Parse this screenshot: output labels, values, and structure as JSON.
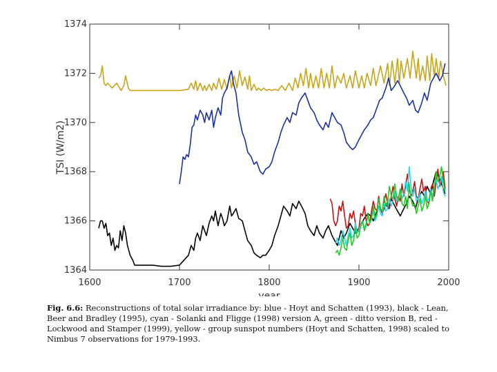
{
  "chart_data": {
    "type": "line",
    "title": "",
    "xlabel": "year",
    "ylabel": "TSI (W/m2)",
    "xlim": [
      1600,
      2000
    ],
    "ylim": [
      1364,
      1374
    ],
    "x_ticks": [
      1600,
      1700,
      1800,
      1900,
      2000
    ],
    "x_tick_labels": [
      "1600",
      "1700",
      "1800",
      "1900",
      "2000"
    ],
    "y_ticks": [
      1364,
      1366,
      1368,
      1370,
      1372,
      1374
    ],
    "y_tick_labels": [
      "1364",
      "1366",
      "1368",
      "1370",
      "1372",
      "1374"
    ],
    "series": [
      {
        "name": "yellow - group sunspot numbers (Hoyt and Schatten, 1998) scaled to Nimbus 7 observations for 1979-1993",
        "color": "#c8a418",
        "x": [
          1610,
          1612,
          1614,
          1616,
          1618,
          1620,
          1625,
          1630,
          1635,
          1638,
          1640,
          1643,
          1645,
          1650,
          1660,
          1670,
          1680,
          1690,
          1700,
          1710,
          1713,
          1716,
          1718,
          1720,
          1723,
          1726,
          1728,
          1730,
          1733,
          1736,
          1738,
          1741,
          1744,
          1747,
          1750,
          1753,
          1756,
          1758,
          1761,
          1764,
          1767,
          1770,
          1773,
          1776,
          1778,
          1780,
          1783,
          1786,
          1788,
          1791,
          1794,
          1797,
          1800,
          1803,
          1806,
          1810,
          1814,
          1818,
          1822,
          1826,
          1829,
          1832,
          1835,
          1838,
          1841,
          1844,
          1846,
          1849,
          1852,
          1855,
          1858,
          1861,
          1864,
          1867,
          1870,
          1873,
          1876,
          1880,
          1883,
          1886,
          1890,
          1893,
          1896,
          1900,
          1903,
          1906,
          1909,
          1913,
          1916,
          1919,
          1924,
          1928,
          1932,
          1934,
          1937,
          1940,
          1943,
          1945,
          1947,
          1950,
          1954,
          1957,
          1960,
          1964,
          1966,
          1968,
          1971,
          1974,
          1976,
          1979,
          1981,
          1984,
          1986,
          1989,
          1991,
          1994,
          1997
        ],
        "y": [
          1371.8,
          1371.9,
          1372.3,
          1371.6,
          1371.5,
          1371.6,
          1371.4,
          1371.6,
          1371.3,
          1371.5,
          1371.9,
          1371.4,
          1371.3,
          1371.3,
          1371.3,
          1371.3,
          1371.3,
          1371.3,
          1371.3,
          1371.35,
          1371.6,
          1371.35,
          1371.7,
          1371.3,
          1371.6,
          1371.3,
          1371.5,
          1371.3,
          1371.55,
          1371.3,
          1371.6,
          1371.35,
          1371.8,
          1371.35,
          1371.75,
          1371.35,
          1371.9,
          1371.4,
          1371.9,
          1371.4,
          1372.1,
          1371.5,
          1371.85,
          1371.35,
          1371.9,
          1371.3,
          1371.55,
          1371.3,
          1371.4,
          1371.3,
          1371.4,
          1371.3,
          1371.35,
          1371.3,
          1371.35,
          1371.3,
          1371.5,
          1371.3,
          1371.6,
          1371.3,
          1371.8,
          1371.4,
          1372.0,
          1371.5,
          1372.2,
          1371.4,
          1372.0,
          1371.4,
          1371.9,
          1371.4,
          1372.2,
          1371.4,
          1372.0,
          1371.4,
          1372.3,
          1371.4,
          1371.9,
          1371.6,
          1372.0,
          1371.4,
          1371.9,
          1371.4,
          1372.1,
          1371.4,
          1371.9,
          1371.4,
          1372.0,
          1371.5,
          1372.2,
          1371.5,
          1372.3,
          1371.6,
          1372.4,
          1371.5,
          1372.5,
          1371.6,
          1372.6,
          1371.6,
          1372.5,
          1371.8,
          1372.6,
          1371.8,
          1372.9,
          1371.8,
          1372.6,
          1371.7,
          1372.3,
          1371.7,
          1372.7,
          1371.7,
          1372.8,
          1371.9,
          1372.6,
          1371.8,
          1372.5,
          1371.9,
          1371.5
        ]
      },
      {
        "name": "blue - Hoyt and Schatten (1993)",
        "color": "#1c2ea8",
        "x": [
          1700,
          1702,
          1704,
          1706,
          1708,
          1710,
          1712,
          1714,
          1716,
          1718,
          1720,
          1723,
          1726,
          1728,
          1730,
          1733,
          1736,
          1738,
          1740,
          1743,
          1746,
          1748,
          1750,
          1753,
          1756,
          1758,
          1760,
          1763,
          1766,
          1770,
          1773,
          1776,
          1780,
          1783,
          1786,
          1790,
          1793,
          1796,
          1800,
          1803,
          1806,
          1810,
          1813,
          1816,
          1820,
          1823,
          1826,
          1830,
          1833,
          1836,
          1840,
          1843,
          1846,
          1850,
          1853,
          1856,
          1860,
          1863,
          1866,
          1870,
          1873,
          1876,
          1880,
          1883,
          1886,
          1890,
          1893,
          1896,
          1900,
          1903,
          1906,
          1910,
          1913,
          1916,
          1920,
          1923,
          1926,
          1930,
          1933,
          1936,
          1940,
          1943,
          1946,
          1950,
          1953,
          1956,
          1960,
          1963,
          1966,
          1970,
          1973,
          1976,
          1980,
          1983,
          1986,
          1990,
          1993,
          1996
        ],
        "y": [
          1367.5,
          1368.0,
          1368.6,
          1368.5,
          1368.7,
          1368.6,
          1369.1,
          1369.8,
          1369.9,
          1370.3,
          1370.1,
          1370.5,
          1370.3,
          1370.0,
          1370.4,
          1370.1,
          1370.5,
          1369.8,
          1370.2,
          1370.6,
          1370.3,
          1371.0,
          1371.2,
          1371.4,
          1371.9,
          1372.1,
          1371.6,
          1371.2,
          1370.3,
          1369.6,
          1369.3,
          1368.8,
          1368.6,
          1368.3,
          1368.4,
          1368.0,
          1367.9,
          1368.1,
          1368.2,
          1368.4,
          1368.8,
          1369.2,
          1369.6,
          1369.9,
          1370.2,
          1370.0,
          1370.4,
          1370.3,
          1370.8,
          1371.0,
          1371.2,
          1370.9,
          1370.6,
          1370.4,
          1370.1,
          1369.9,
          1369.7,
          1370.0,
          1369.8,
          1370.4,
          1370.2,
          1370.0,
          1369.9,
          1369.6,
          1369.2,
          1369.0,
          1368.9,
          1369.0,
          1369.3,
          1369.5,
          1369.7,
          1369.9,
          1370.1,
          1370.2,
          1370.6,
          1370.9,
          1371.0,
          1371.4,
          1371.8,
          1371.3,
          1371.5,
          1371.7,
          1371.5,
          1371.2,
          1371.0,
          1370.7,
          1370.9,
          1370.5,
          1370.4,
          1370.8,
          1371.2,
          1370.9,
          1371.6,
          1371.8,
          1372.0,
          1371.7,
          1371.9,
          1372.4
        ]
      },
      {
        "name": "black - Lean, Beer and Bradley (1995)",
        "color": "#000000",
        "x": [
          1610,
          1612,
          1614,
          1616,
          1618,
          1620,
          1622,
          1624,
          1626,
          1628,
          1630,
          1632,
          1634,
          1636,
          1638,
          1640,
          1642,
          1645,
          1648,
          1650,
          1655,
          1660,
          1670,
          1680,
          1690,
          1700,
          1705,
          1710,
          1713,
          1716,
          1718,
          1720,
          1723,
          1726,
          1728,
          1730,
          1733,
          1736,
          1738,
          1740,
          1743,
          1746,
          1748,
          1750,
          1753,
          1756,
          1758,
          1760,
          1763,
          1766,
          1770,
          1773,
          1776,
          1780,
          1783,
          1786,
          1790,
          1793,
          1796,
          1800,
          1803,
          1806,
          1810,
          1813,
          1816,
          1820,
          1823,
          1826,
          1830,
          1833,
          1836,
          1840,
          1843,
          1846,
          1850,
          1853,
          1856,
          1860,
          1863,
          1866,
          1870,
          1873,
          1876,
          1880,
          1883,
          1886,
          1890,
          1893,
          1896,
          1900,
          1903,
          1906,
          1910,
          1913,
          1916,
          1920,
          1923,
          1926,
          1930,
          1933,
          1936,
          1940,
          1943,
          1946,
          1950,
          1953,
          1956,
          1960,
          1963,
          1966,
          1970,
          1973,
          1976,
          1980,
          1983,
          1986,
          1990,
          1993,
          1996
        ],
        "y": [
          1365.7,
          1366.0,
          1366.0,
          1365.7,
          1365.9,
          1365.4,
          1365.5,
          1365.0,
          1365.3,
          1364.8,
          1365.0,
          1364.9,
          1365.6,
          1365.2,
          1365.8,
          1365.5,
          1365.0,
          1364.6,
          1364.4,
          1364.2,
          1364.2,
          1364.2,
          1364.2,
          1364.15,
          1364.15,
          1364.2,
          1364.4,
          1364.6,
          1365.0,
          1364.8,
          1365.3,
          1365.5,
          1365.2,
          1365.8,
          1365.6,
          1365.4,
          1365.9,
          1366.2,
          1366.0,
          1366.4,
          1365.8,
          1366.3,
          1366.1,
          1365.8,
          1366.0,
          1366.6,
          1366.2,
          1366.3,
          1366.5,
          1366.1,
          1366.0,
          1365.6,
          1365.2,
          1365.0,
          1364.7,
          1364.6,
          1364.5,
          1364.6,
          1364.6,
          1364.8,
          1365.0,
          1365.4,
          1365.8,
          1366.2,
          1366.6,
          1366.4,
          1366.2,
          1366.7,
          1366.5,
          1366.8,
          1366.6,
          1366.3,
          1365.8,
          1365.6,
          1365.4,
          1365.8,
          1365.5,
          1365.3,
          1365.6,
          1365.8,
          1365.4,
          1365.2,
          1365.0,
          1365.6,
          1365.3,
          1365.5,
          1365.9,
          1365.7,
          1365.5,
          1365.6,
          1365.9,
          1366.1,
          1366.3,
          1366.2,
          1366.0,
          1366.4,
          1366.6,
          1366.3,
          1366.7,
          1366.5,
          1366.9,
          1366.6,
          1366.4,
          1366.2,
          1366.5,
          1366.7,
          1367.0,
          1366.8,
          1366.5,
          1366.9,
          1367.2,
          1367.0,
          1367.4,
          1367.1,
          1367.6,
          1368.0,
          1367.7,
          1367.4,
          1367.1
        ]
      },
      {
        "name": "red - Lockwood and Stamper (1999)",
        "color": "#cc1010",
        "x": [
          1868,
          1870,
          1872,
          1874,
          1876,
          1878,
          1880,
          1882,
          1884,
          1886,
          1888,
          1890,
          1892,
          1894,
          1896,
          1898,
          1900,
          1902,
          1904,
          1906,
          1908,
          1910,
          1912,
          1914,
          1916,
          1918,
          1920,
          1922,
          1924,
          1926,
          1928,
          1930,
          1932,
          1934,
          1936,
          1938,
          1940,
          1942,
          1944,
          1946,
          1948,
          1950,
          1952,
          1954,
          1956,
          1958,
          1960,
          1962,
          1964,
          1966,
          1968,
          1970,
          1972,
          1974,
          1976,
          1978,
          1980,
          1982,
          1984,
          1986,
          1988,
          1990,
          1992,
          1994,
          1996
        ],
        "y": [
          1366.9,
          1366.7,
          1366.0,
          1365.8,
          1366.0,
          1366.6,
          1366.4,
          1366.8,
          1366.2,
          1365.7,
          1365.8,
          1366.3,
          1366.1,
          1366.4,
          1365.9,
          1365.6,
          1365.7,
          1366.3,
          1366.2,
          1366.6,
          1366.0,
          1365.8,
          1365.9,
          1366.4,
          1366.8,
          1366.5,
          1366.4,
          1367.0,
          1366.5,
          1366.3,
          1366.8,
          1367.1,
          1366.7,
          1366.5,
          1367.0,
          1367.4,
          1366.9,
          1366.6,
          1367.0,
          1366.8,
          1367.5,
          1367.0,
          1367.4,
          1367.9,
          1367.3,
          1367.0,
          1367.2,
          1367.6,
          1367.0,
          1366.9,
          1367.3,
          1367.7,
          1367.2,
          1367.4,
          1366.8,
          1366.7,
          1367.3,
          1367.5,
          1367.0,
          1367.6,
          1368.1,
          1367.4,
          1367.6,
          1368.0,
          1367.3
        ]
      },
      {
        "name": "cyan - Solanki and Fligge (1998) version A",
        "color": "#22d8e8",
        "x": [
          1874,
          1876,
          1878,
          1880,
          1882,
          1884,
          1886,
          1888,
          1890,
          1892,
          1894,
          1896,
          1898,
          1900,
          1902,
          1904,
          1906,
          1908,
          1910,
          1912,
          1914,
          1916,
          1918,
          1920,
          1922,
          1924,
          1926,
          1928,
          1930,
          1932,
          1934,
          1936,
          1938,
          1940,
          1942,
          1944,
          1946,
          1948,
          1950,
          1952,
          1954,
          1956,
          1958,
          1960,
          1962,
          1964,
          1966,
          1968,
          1970,
          1972,
          1974,
          1976,
          1978,
          1980,
          1982,
          1984,
          1986,
          1988,
          1990,
          1992,
          1994,
          1996
        ],
        "y": [
          1365.1,
          1365.3,
          1365.0,
          1365.2,
          1365.6,
          1365.3,
          1365.0,
          1365.4,
          1365.7,
          1365.3,
          1365.4,
          1365.9,
          1365.5,
          1365.6,
          1365.9,
          1366.0,
          1365.7,
          1365.9,
          1366.2,
          1365.9,
          1366.1,
          1366.4,
          1366.0,
          1366.2,
          1366.6,
          1366.3,
          1366.2,
          1366.7,
          1366.4,
          1366.5,
          1366.9,
          1366.6,
          1366.8,
          1367.2,
          1366.8,
          1366.9,
          1367.3,
          1366.9,
          1367.1,
          1367.6,
          1367.2,
          1368.2,
          1367.4,
          1367.0,
          1367.3,
          1366.8,
          1366.9,
          1367.1,
          1366.7,
          1366.9,
          1367.2,
          1366.8,
          1366.9,
          1367.3,
          1367.0,
          1367.4,
          1367.7,
          1367.3,
          1367.5,
          1367.8,
          1367.2,
          1367.0
        ]
      },
      {
        "name": "green - Solanki and Fligge (1998) version B",
        "color": "#22cc22",
        "x": [
          1874,
          1876,
          1878,
          1880,
          1882,
          1884,
          1886,
          1888,
          1890,
          1892,
          1894,
          1896,
          1898,
          1900,
          1902,
          1904,
          1906,
          1908,
          1910,
          1912,
          1914,
          1916,
          1918,
          1920,
          1922,
          1924,
          1926,
          1928,
          1930,
          1932,
          1934,
          1936,
          1938,
          1940,
          1942,
          1944,
          1946,
          1948,
          1950,
          1952,
          1954,
          1956,
          1958,
          1960,
          1962,
          1964,
          1966,
          1968,
          1970,
          1972,
          1974,
          1976,
          1978,
          1980,
          1982,
          1984,
          1986,
          1988,
          1990,
          1992,
          1994,
          1996
        ],
        "y": [
          1364.7,
          1364.8,
          1364.6,
          1364.9,
          1365.3,
          1364.9,
          1364.8,
          1365.2,
          1365.5,
          1365.0,
          1365.2,
          1365.7,
          1365.3,
          1365.4,
          1365.8,
          1366.0,
          1365.6,
          1365.8,
          1366.3,
          1365.9,
          1366.1,
          1366.6,
          1366.1,
          1366.3,
          1366.9,
          1366.5,
          1366.4,
          1367.0,
          1366.6,
          1366.8,
          1367.4,
          1367.0,
          1366.9,
          1367.5,
          1367.0,
          1366.8,
          1367.3,
          1366.7,
          1366.6,
          1367.0,
          1366.5,
          1367.5,
          1366.9,
          1366.6,
          1366.7,
          1366.3,
          1366.6,
          1366.9,
          1366.4,
          1366.6,
          1367.0,
          1366.5,
          1366.7,
          1367.2,
          1366.8,
          1367.4,
          1368.0,
          1367.6,
          1367.8,
          1368.2,
          1367.6,
          1367.2
        ]
      }
    ]
  },
  "caption": {
    "label": "Fig. 6.6:",
    "text": " Reconstructions of total solar irradiance by: blue - Hoyt and Schatten (1993), black - Lean, Beer and Bradley (1995), cyan - Solanki and Fligge (1998) version A, green - ditto version B, red - Lockwood and Stamper (1999), yellow - group sunspot numbers (Hoyt and Schatten, 1998) scaled to Nimbus 7 observations for 1979-1993."
  }
}
